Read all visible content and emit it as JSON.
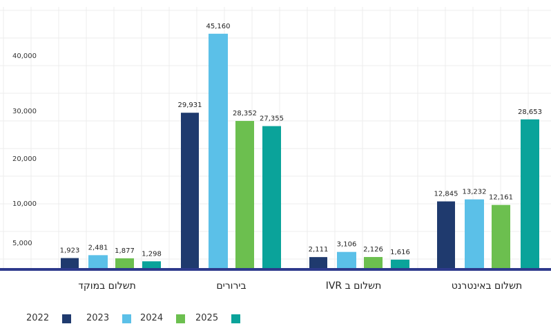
{
  "chart_data": {
    "type": "bar",
    "categories": [
      "תשלום במוקד",
      "בירורים",
      "תשלום ב IVR",
      "תשלום באינטרנט"
    ],
    "series": [
      {
        "name": "2022",
        "color": "#1f3a6e",
        "values": [
          1923,
          29931,
          2111,
          12845
        ]
      },
      {
        "name": "2023",
        "color": "#5bc0e8",
        "values": [
          2481,
          45160,
          3106,
          13232
        ]
      },
      {
        "name": "2024",
        "color": "#6cbf4f",
        "values": [
          1877,
          28352,
          2126,
          12161
        ]
      },
      {
        "name": "2025",
        "color": "#0aa39a",
        "values": [
          1298,
          27355,
          1616,
          28653
        ]
      }
    ],
    "value_labels": [
      [
        "1,923",
        "29,931",
        "2,111",
        "12,845"
      ],
      [
        "2,481",
        "45,160",
        "3,106",
        "13,232"
      ],
      [
        "1,877",
        "28,352",
        "2,126",
        "12,161"
      ],
      [
        "1,298",
        "27,355",
        "1,616",
        "28,653"
      ]
    ],
    "y_ticks": [
      5000,
      10000,
      20000,
      30000,
      40000
    ],
    "y_tick_labels": [
      "5,000",
      "10,000",
      "20,000",
      "30,000",
      "40,000"
    ],
    "ylim": [
      0,
      47000
    ],
    "grid": true,
    "legend_position": "bottom-left",
    "axis_color": "#2e3a8c"
  }
}
